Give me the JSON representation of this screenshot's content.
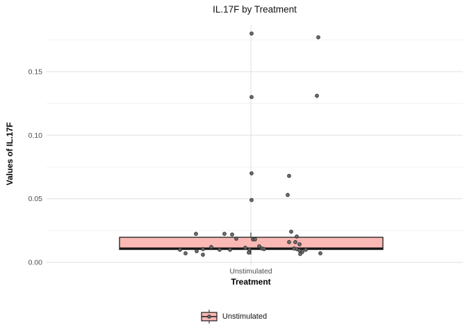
{
  "title": "IL.17F by Treatment",
  "axes": {
    "x_title": "Treatment",
    "y_title": "Values of IL.17F",
    "x_tick_labels": [
      "Unstimulated"
    ],
    "y_tick_labels": [
      "0.00",
      "0.05",
      "0.10",
      "0.15"
    ]
  },
  "legend": {
    "label": "Unstimulated",
    "position": "bottom"
  },
  "colors": {
    "box_fill": "#fbb9b6",
    "box_stroke": "#1a1a1a",
    "point_fill": "#686868",
    "point_stroke": "#2e2e2e",
    "grid_major": "#e4e4e4",
    "grid_minor": "#f1f1f1",
    "tick_label": "#4d4d4d",
    "text": "#111111"
  },
  "chart_data": {
    "type": "boxplot",
    "title": "IL.17F by Treatment",
    "xlabel": "Treatment",
    "ylabel": "Values of IL.17F",
    "categories": [
      "Unstimulated"
    ],
    "y_ticks": [
      0.0,
      0.05,
      0.1,
      0.15
    ],
    "y_minor_ticks": [
      0.025,
      0.075,
      0.125,
      0.175
    ],
    "ylim": [
      -0.005,
      0.189
    ],
    "grid": "horizontal major+minor, vertical line at category center",
    "legend_position": "bottom",
    "series": [
      {
        "name": "Unstimulated",
        "box": {
          "q1": 0.0101,
          "median": 0.011,
          "q3": 0.0197,
          "whisker_low": 0.006,
          "whisker_high": 0.0235
        },
        "jitter_points": [
          {
            "x": 362,
            "v": 0.18
          },
          {
            "x": 458,
            "v": 0.177
          },
          {
            "x": 362,
            "v": 0.13
          },
          {
            "x": 456,
            "v": 0.131
          },
          {
            "x": 362,
            "v": 0.07
          },
          {
            "x": 416,
            "v": 0.068
          },
          {
            "x": 414,
            "v": 0.053
          },
          {
            "x": 362,
            "v": 0.049
          },
          {
            "x": 419,
            "v": 0.0241
          },
          {
            "x": 282,
            "v": 0.0224
          },
          {
            "x": 323,
            "v": 0.0224
          },
          {
            "x": 334,
            "v": 0.0219
          },
          {
            "x": 427,
            "v": 0.0203
          },
          {
            "x": 340,
            "v": 0.0186
          },
          {
            "x": 364,
            "v": 0.0181
          },
          {
            "x": 367,
            "v": 0.0181
          },
          {
            "x": 416,
            "v": 0.0159
          },
          {
            "x": 425,
            "v": 0.0159
          },
          {
            "x": 431,
            "v": 0.0142
          },
          {
            "x": 373,
            "v": 0.0126
          },
          {
            "x": 304,
            "v": 0.012
          },
          {
            "x": 353,
            "v": 0.0115
          },
          {
            "x": 377,
            "v": 0.0109
          },
          {
            "x": 423,
            "v": 0.0109
          },
          {
            "x": 292,
            "v": 0.0104
          },
          {
            "x": 380,
            "v": 0.0104
          },
          {
            "x": 427,
            "v": 0.0104
          },
          {
            "x": 259,
            "v": 0.0099
          },
          {
            "x": 316,
            "v": 0.0099
          },
          {
            "x": 331,
            "v": 0.0099
          },
          {
            "x": 359,
            "v": 0.0099
          },
          {
            "x": 440,
            "v": 0.0099
          },
          {
            "x": 431,
            "v": 0.0093
          },
          {
            "x": 283,
            "v": 0.0088
          },
          {
            "x": 435,
            "v": 0.0082
          },
          {
            "x": 358,
            "v": 0.0077
          },
          {
            "x": 267,
            "v": 0.0071
          },
          {
            "x": 461,
            "v": 0.0071
          },
          {
            "x": 432,
            "v": 0.0066
          },
          {
            "x": 292,
            "v": 0.006
          }
        ]
      }
    ]
  }
}
